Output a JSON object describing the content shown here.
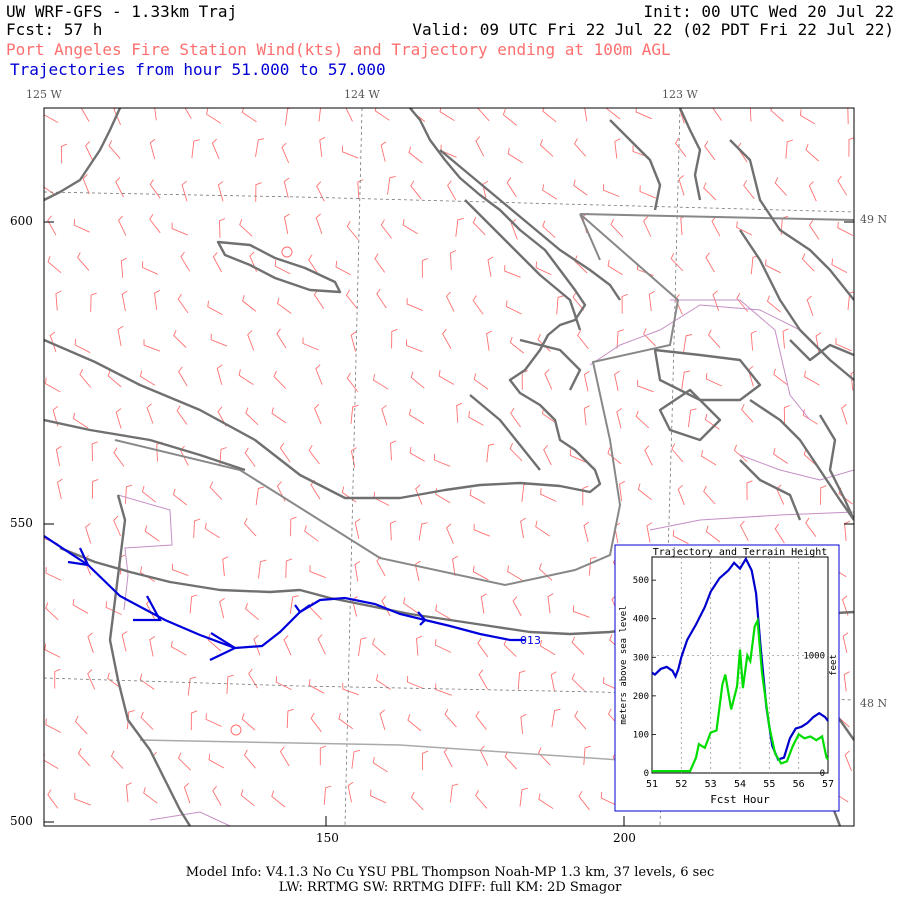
{
  "header": {
    "title": "UW WRF-GFS - 1.33km Traj",
    "fcst": "Fcst:   57 h",
    "init": "Init: 00 UTC Wed 20 Jul 22",
    "valid": "Valid: 09 UTC Fri 22 Jul 22 (02 PDT Fri 22 Jul 22)",
    "subtitle": "Port Angeles Fire Station Wind(kts) and Trajectory ending at 100m AGL",
    "trajectory_range": "Trajectories from hour  51.000 to  57.000"
  },
  "map": {
    "longitude_labels": [
      "125 W",
      "124 W",
      "123 W"
    ],
    "latitude_labels": [
      "49 N",
      "48 N"
    ],
    "grid_y_labels": [
      "600",
      "550",
      "500"
    ],
    "grid_x_labels": [
      "150",
      "200"
    ],
    "endpoint_label": "013",
    "colors": {
      "coast": "#707070",
      "border": "#888888",
      "county": "#cc99cc",
      "barbs": "#ff7070",
      "trajectory": "#0000dd"
    }
  },
  "inset": {
    "title": "Trajectory and Terrain Height",
    "ylabel": "meters above sea level",
    "ylabel_right": "feet",
    "xlabel": "Fcst Hour",
    "y_ticks": [
      "0",
      "100",
      "200",
      "300",
      "400",
      "500"
    ],
    "y_right_ticks": [
      "0",
      "1000"
    ],
    "x_ticks": [
      "51",
      "52",
      "53",
      "54",
      "55",
      "56",
      "57"
    ],
    "chart_data": {
      "type": "line",
      "xlim": [
        51,
        57
      ],
      "ylim": [
        0,
        560
      ],
      "series": [
        {
          "color": "#0000cc",
          "x": [
            51.0,
            51.1,
            51.3,
            51.5,
            51.7,
            51.8,
            51.9,
            52.0,
            52.2,
            52.5,
            52.8,
            53.0,
            53.3,
            53.6,
            53.8,
            54.0,
            54.2,
            54.4,
            54.55,
            54.7,
            54.9,
            55.1,
            55.3,
            55.5,
            55.7,
            55.9,
            56.1,
            56.3,
            56.5,
            56.7,
            56.9,
            57.0
          ],
          "values": [
            260,
            255,
            270,
            275,
            265,
            250,
            270,
            300,
            345,
            385,
            430,
            470,
            505,
            525,
            545,
            530,
            555,
            525,
            465,
            330,
            170,
            70,
            35,
            40,
            90,
            115,
            120,
            130,
            145,
            155,
            145,
            135
          ]
        },
        {
          "color": "#00dd00",
          "x": [
            51.0,
            51.5,
            52.0,
            52.3,
            52.5,
            52.6,
            52.8,
            53.0,
            53.2,
            53.4,
            53.5,
            53.7,
            53.9,
            54.0,
            54.1,
            54.25,
            54.35,
            54.5,
            54.6,
            54.75,
            55.0,
            55.2,
            55.4,
            55.6,
            55.8,
            56.0,
            56.2,
            56.4,
            56.6,
            56.8,
            56.95,
            57.0
          ],
          "values": [
            5,
            5,
            5,
            5,
            40,
            75,
            65,
            105,
            110,
            230,
            255,
            165,
            225,
            320,
            220,
            305,
            290,
            380,
            395,
            260,
            120,
            50,
            25,
            30,
            70,
            100,
            90,
            95,
            85,
            95,
            40,
            35
          ]
        }
      ]
    }
  },
  "model_info": {
    "line1": "Model Info: V4.1.3    No Cu    YSU PBL   Thompson      Noah-MP    1.3 km,  37 levels,    6 sec",
    "line2": "LW: RRTMG SW: RRTMG    DIFF: full    KM: 2D Smagor"
  }
}
